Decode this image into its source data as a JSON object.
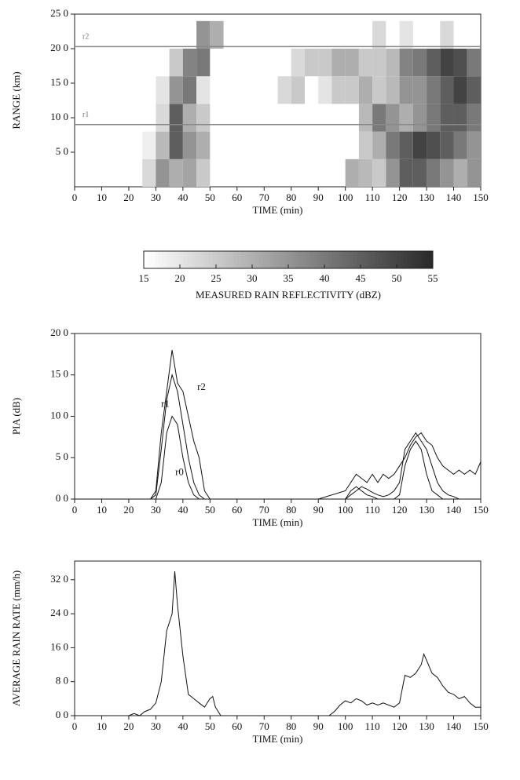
{
  "chart_data": [
    {
      "type": "heatmap",
      "xlabel": "TIME (min)",
      "ylabel": "RANGE (km)",
      "xlim": [
        0,
        150
      ],
      "ylim": [
        0,
        25
      ],
      "xticks": [
        0,
        10,
        20,
        30,
        40,
        50,
        60,
        70,
        80,
        90,
        100,
        110,
        120,
        130,
        140,
        150
      ],
      "yticks": [
        {
          "value": 5,
          "label": "5 0"
        },
        {
          "value": 10,
          "label": "10 0"
        },
        {
          "value": 15,
          "label": "15 0"
        },
        {
          "value": 20,
          "label": "20 0"
        },
        {
          "value": 25,
          "label": "25 0"
        }
      ],
      "xbins": [
        0,
        5,
        10,
        15,
        20,
        25,
        30,
        35,
        40,
        45,
        50,
        55,
        60,
        65,
        70,
        75,
        80,
        85,
        90,
        95,
        100,
        105,
        110,
        115,
        120,
        125,
        130,
        135,
        140,
        145,
        150
      ],
      "ybins": [
        0,
        4,
        8,
        12,
        16,
        20,
        24
      ],
      "z": [
        [
          null,
          null,
          null,
          null,
          null,
          22,
          35,
          30,
          32,
          25,
          null,
          null,
          null,
          null,
          null,
          null,
          null,
          null,
          null,
          null,
          30,
          28,
          25,
          35,
          45,
          45,
          40,
          35,
          30,
          35
        ],
        [
          null,
          null,
          null,
          null,
          null,
          18,
          28,
          45,
          35,
          30,
          null,
          null,
          null,
          null,
          null,
          null,
          null,
          null,
          null,
          null,
          null,
          25,
          30,
          40,
          45,
          50,
          48,
          45,
          40,
          35
        ],
        [
          null,
          null,
          null,
          null,
          null,
          null,
          22,
          45,
          30,
          25,
          null,
          null,
          null,
          null,
          null,
          null,
          null,
          null,
          null,
          null,
          null,
          28,
          40,
          35,
          30,
          35,
          40,
          45,
          45,
          40
        ],
        [
          null,
          null,
          null,
          null,
          null,
          null,
          20,
          35,
          40,
          20,
          null,
          null,
          null,
          null,
          null,
          22,
          25,
          null,
          20,
          25,
          25,
          30,
          25,
          28,
          35,
          35,
          40,
          45,
          50,
          45
        ],
        [
          null,
          null,
          null,
          null,
          null,
          null,
          null,
          25,
          38,
          40,
          null,
          null,
          null,
          null,
          null,
          null,
          22,
          25,
          25,
          30,
          30,
          25,
          25,
          28,
          38,
          40,
          45,
          50,
          48,
          40
        ],
        [
          null,
          null,
          null,
          null,
          null,
          null,
          null,
          null,
          null,
          35,
          30,
          null,
          null,
          null,
          null,
          null,
          null,
          null,
          null,
          null,
          null,
          null,
          22,
          null,
          20,
          null,
          null,
          22,
          null,
          null
        ]
      ],
      "lines": [
        {
          "label": "r1",
          "value": 9
        },
        {
          "label": "r2",
          "value": 20.3
        }
      ],
      "zlim": [
        15,
        55
      ],
      "zticks": [
        15,
        20,
        25,
        30,
        35,
        40,
        45,
        50,
        55
      ],
      "zlabel": "MEASURED RAIN REFLECTIVITY (dBZ)"
    },
    {
      "type": "line",
      "xlabel": "TIME (min)",
      "ylabel": "PIA (dB)",
      "xlim": [
        0,
        150
      ],
      "ylim": [
        0,
        20
      ],
      "xticks": [
        0,
        10,
        20,
        30,
        40,
        50,
        60,
        70,
        80,
        90,
        100,
        110,
        120,
        130,
        140,
        150
      ],
      "yticks": [
        {
          "value": 0,
          "label": "0 0"
        },
        {
          "value": 5,
          "label": "5 0"
        },
        {
          "value": 10,
          "label": "10 0"
        },
        {
          "value": 15,
          "label": "15 0"
        },
        {
          "value": 20,
          "label": "20 0"
        }
      ],
      "x": [
        0,
        20,
        28,
        30,
        32,
        34,
        36,
        38,
        40,
        42,
        44,
        46,
        48,
        50,
        60,
        90,
        100,
        102,
        104,
        106,
        108,
        110,
        112,
        114,
        116,
        118,
        120,
        122,
        124,
        126,
        128,
        130,
        132,
        134,
        136,
        138,
        140,
        142,
        144,
        146,
        148,
        150
      ],
      "series": [
        {
          "name": "r2",
          "color": "#111111",
          "values": [
            0,
            0,
            0,
            1,
            8,
            13,
            18,
            14,
            13,
            10,
            7,
            5,
            1,
            0,
            0,
            0,
            1,
            2,
            3,
            2.5,
            2,
            3,
            2,
            3,
            2.5,
            3,
            4,
            5,
            6.5,
            7.5,
            8,
            7,
            6.5,
            5,
            4,
            3.5,
            3,
            3.5,
            3,
            3.5,
            3,
            4.5
          ]
        },
        {
          "name": "r1",
          "color": "#111111",
          "values": [
            0,
            0,
            0,
            0.5,
            6,
            12,
            15,
            13,
            9,
            5,
            2,
            0.5,
            0,
            0,
            0,
            0,
            0,
            0.5,
            1,
            1.5,
            1.2,
            0.8,
            0.5,
            0.3,
            0.5,
            1,
            2,
            6,
            7,
            8,
            7,
            6,
            4,
            2,
            1,
            0.5,
            0.3,
            0,
            0,
            0,
            0,
            0
          ]
        },
        {
          "name": "r0",
          "color": "#111111",
          "values": [
            0,
            0,
            0,
            0,
            2,
            8,
            10,
            9,
            5,
            2,
            0.5,
            0,
            0,
            0,
            0,
            0,
            0,
            1,
            1.5,
            1,
            0.5,
            0.3,
            0,
            0,
            0,
            0,
            0.5,
            4,
            6,
            7,
            6,
            3,
            1,
            0.5,
            0,
            0,
            0,
            0,
            0,
            0,
            0,
            0
          ]
        }
      ]
    },
    {
      "type": "line",
      "xlabel": "TIME (min)",
      "ylabel": "AVERAGE RAIN RATE (mm/h)",
      "xlim": [
        0,
        150
      ],
      "ylim": [
        0,
        36.4
      ],
      "xticks": [
        0,
        10,
        20,
        30,
        40,
        50,
        60,
        70,
        80,
        90,
        100,
        110,
        120,
        130,
        140,
        150
      ],
      "yticks": [
        {
          "value": 0,
          "label": "0 0"
        },
        {
          "value": 8,
          "label": "8 0"
        },
        {
          "value": 16,
          "label": "16 0"
        },
        {
          "value": 24,
          "label": "24 0"
        },
        {
          "value": 32,
          "label": "32 0"
        }
      ],
      "x": [
        0,
        20,
        22,
        24,
        26,
        28,
        30,
        32,
        34,
        36,
        37,
        38,
        40,
        42,
        44,
        46,
        48,
        50,
        51,
        52,
        54,
        56,
        60,
        90,
        94,
        96,
        98,
        100,
        102,
        104,
        106,
        108,
        110,
        112,
        114,
        116,
        118,
        120,
        122,
        124,
        126,
        128,
        129,
        130,
        132,
        134,
        136,
        138,
        140,
        142,
        144,
        146,
        148,
        150
      ],
      "color": "#111111",
      "values": [
        0,
        0,
        0.5,
        0,
        1,
        1.5,
        3,
        8,
        20,
        24,
        34,
        26,
        14,
        5,
        4,
        3,
        2,
        4,
        4.5,
        2,
        0,
        0,
        0,
        0,
        0,
        1,
        2.5,
        3.5,
        3,
        4,
        3.5,
        2.5,
        3,
        2.5,
        3,
        2.5,
        2,
        3,
        9.5,
        9,
        10,
        12,
        14.5,
        13,
        10,
        9,
        7,
        5.5,
        5,
        4,
        4.5,
        3,
        2,
        2
      ]
    }
  ]
}
